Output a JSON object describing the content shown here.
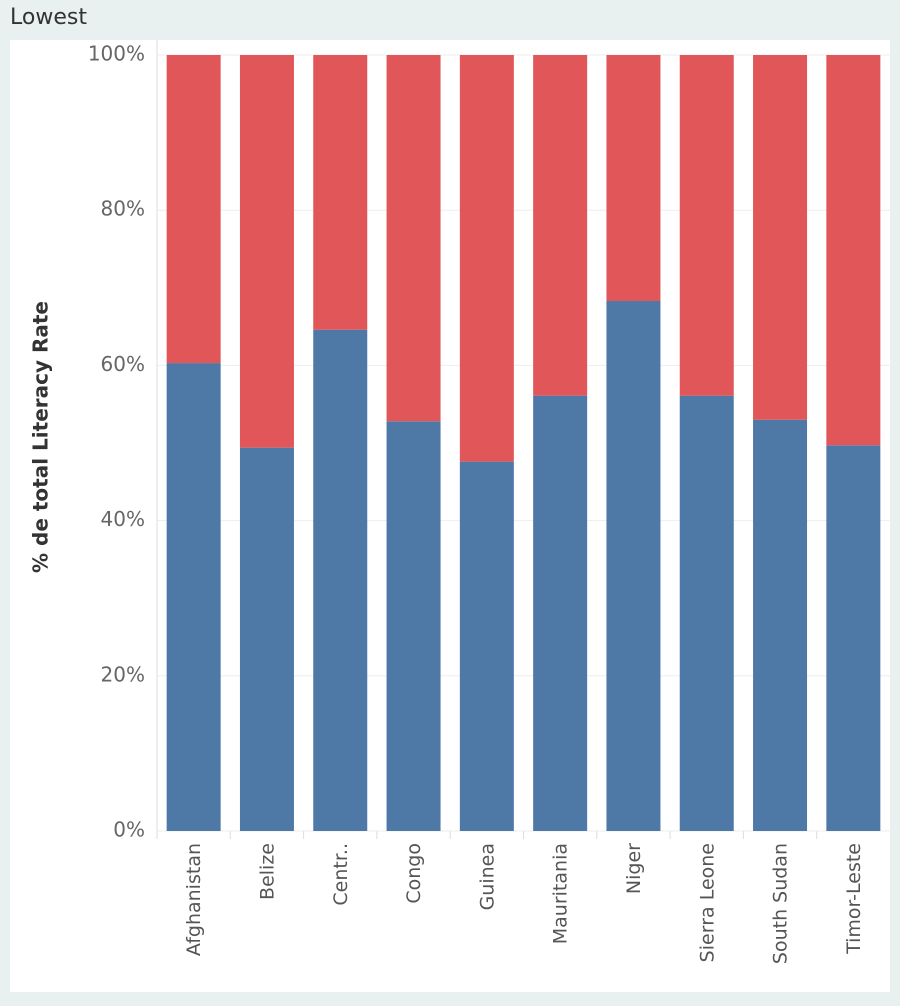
{
  "chart_data": {
    "type": "stacked_bar",
    "title": "Lowest",
    "y_label": "% de total Literacy Rate",
    "categories": [
      "Afghanistan",
      "Belize",
      "Centr..",
      "Congo",
      "Guinea",
      "Mauritania",
      "Niger",
      "Sierra Leone",
      "South Sudan",
      "Timor-Leste"
    ],
    "series": [
      {
        "color": "#4e79a7",
        "values": [
          60.3,
          49.4,
          64.6,
          52.8,
          47.6,
          56.1,
          68.3,
          56.1,
          53.0,
          49.7
        ]
      },
      {
        "color": "#e15759",
        "values": [
          39.7,
          50.6,
          35.4,
          47.2,
          52.4,
          43.9,
          31.7,
          43.9,
          47.0,
          50.3
        ]
      }
    ],
    "ylim": [
      0,
      100
    ],
    "yticks": [
      {
        "value": 0,
        "label": "0%"
      },
      {
        "value": 20,
        "label": "20%"
      },
      {
        "value": 40,
        "label": "40%"
      },
      {
        "value": 60,
        "label": "60%"
      },
      {
        "value": 80,
        "label": "80%"
      },
      {
        "value": 100,
        "label": "100%"
      }
    ],
    "grid": true
  }
}
